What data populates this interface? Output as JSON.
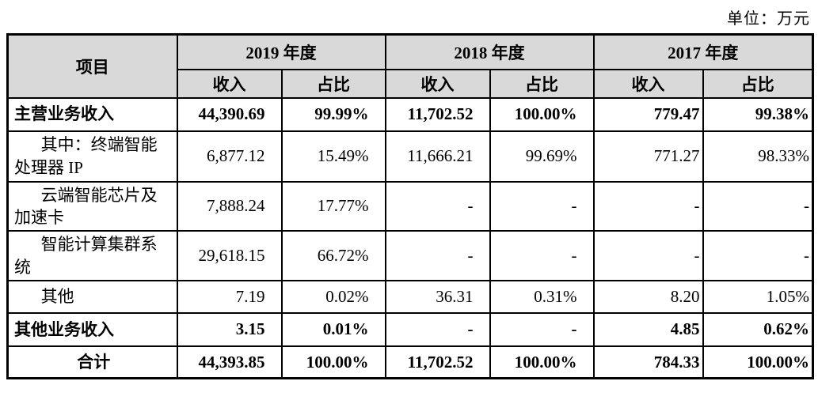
{
  "unit_label": "单位：万元",
  "colors": {
    "header_bg": "#d9d9d9",
    "border": "#000000",
    "text": "#000000"
  },
  "table": {
    "item_header": "项目",
    "year_groups": [
      {
        "label": "2019 年度",
        "income": "收入",
        "ratio": "占比"
      },
      {
        "label": "2018 年度",
        "income": "收入",
        "ratio": "占比"
      },
      {
        "label": "2017 年度",
        "income": "收入",
        "ratio": "占比"
      }
    ],
    "rows": [
      {
        "label": "主营业务收入",
        "bold": true,
        "indent": false,
        "center": false,
        "values": [
          "44,390.69",
          "99.99%",
          "11,702.52",
          "100.00%",
          "779.47",
          "99.38%"
        ]
      },
      {
        "label": "其中：终端智能处理器 IP",
        "bold": false,
        "indent": true,
        "center": false,
        "values": [
          "6,877.12",
          "15.49%",
          "11,666.21",
          "99.69%",
          "771.27",
          "98.33%"
        ]
      },
      {
        "label": "云端智能芯片及加速卡",
        "bold": false,
        "indent": true,
        "center": false,
        "values": [
          "7,888.24",
          "17.77%",
          "-",
          "-",
          "-",
          "-"
        ]
      },
      {
        "label": "智能计算集群系统",
        "bold": false,
        "indent": true,
        "center": false,
        "values": [
          "29,618.15",
          "66.72%",
          "-",
          "-",
          "-",
          "-"
        ]
      },
      {
        "label": "其他",
        "bold": false,
        "indent": true,
        "center": false,
        "values": [
          "7.19",
          "0.02%",
          "36.31",
          "0.31%",
          "8.20",
          "1.05%"
        ]
      },
      {
        "label": "其他业务收入",
        "bold": true,
        "indent": false,
        "center": false,
        "values": [
          "3.15",
          "0.01%",
          "-",
          "-",
          "4.85",
          "0.62%"
        ]
      },
      {
        "label": "合计",
        "bold": true,
        "indent": false,
        "center": true,
        "values": [
          "44,393.85",
          "100.00%",
          "11,702.52",
          "100.00%",
          "784.33",
          "100.00%"
        ]
      }
    ]
  }
}
